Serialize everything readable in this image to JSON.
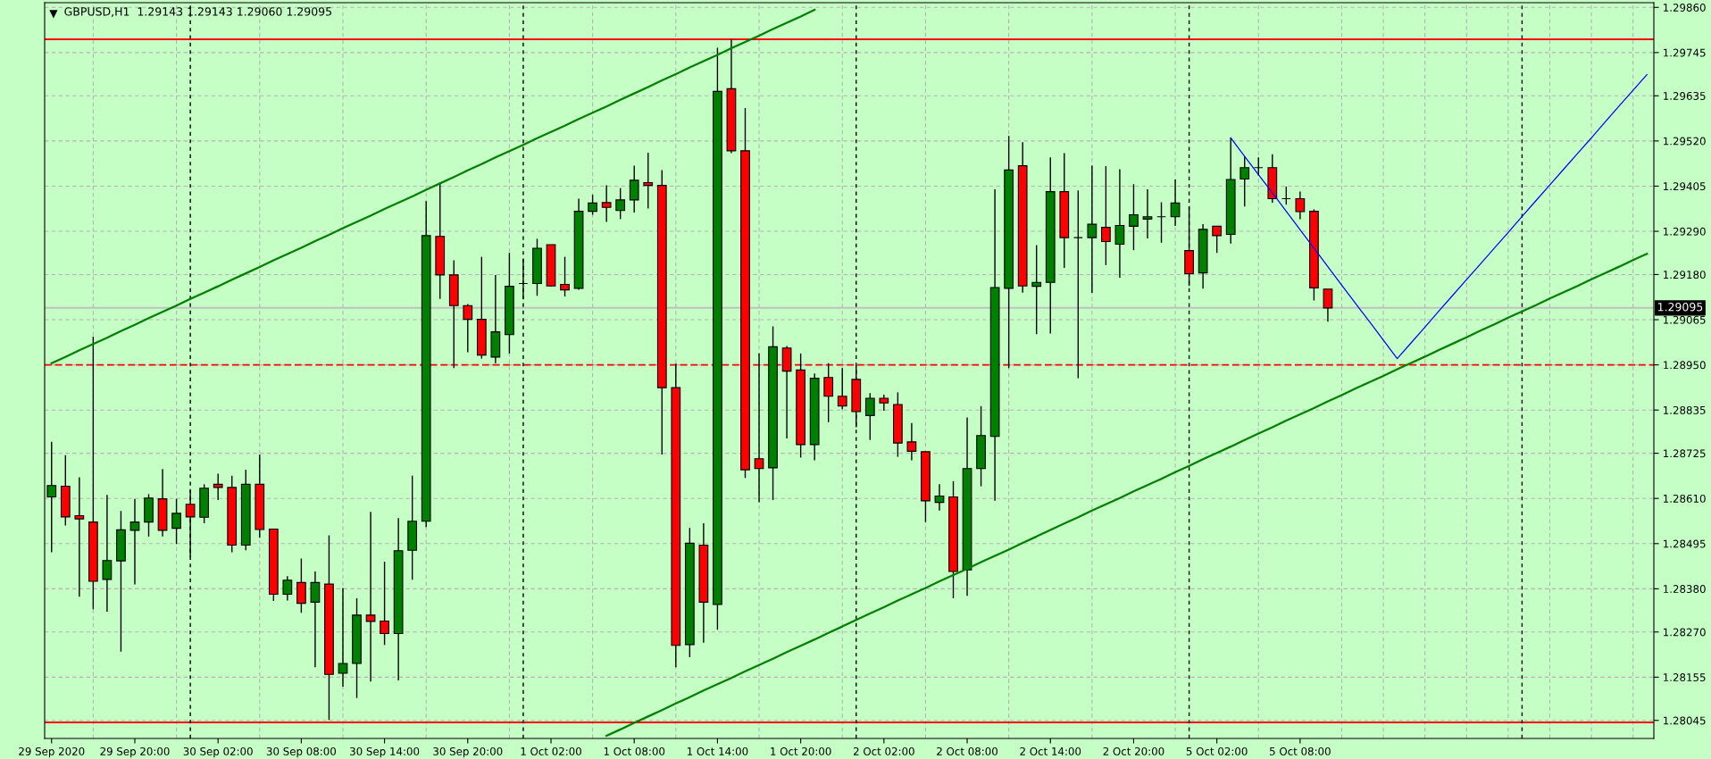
{
  "chart_data": {
    "type": "candlestick",
    "title": "GBPUSD,H1  1.29143 1.29143 1.29060 1.29095",
    "categories": [
      "29 Sep 2020",
      null,
      null,
      null,
      null,
      null,
      "29 Sep 20:00",
      null,
      null,
      null,
      null,
      null,
      "30 Sep 02:00",
      null,
      null,
      null,
      null,
      null,
      "30 Sep 08:00",
      null,
      null,
      null,
      null,
      null,
      "30 Sep 14:00",
      null,
      null,
      null,
      null,
      null,
      "30 Sep 20:00",
      null,
      null,
      null,
      null,
      null,
      "1 Oct 02:00",
      null,
      null,
      null,
      null,
      null,
      "1 Oct 08:00",
      null,
      null,
      null,
      null,
      null,
      "1 Oct 14:00",
      null,
      null,
      null,
      null,
      null,
      "1 Oct 20:00",
      null,
      null,
      null,
      null,
      null,
      "2 Oct 02:00",
      null,
      null,
      null,
      null,
      null,
      "2 Oct 08:00",
      null,
      null,
      null,
      null,
      null,
      "2 Oct 14:00",
      null,
      null,
      null,
      null,
      null,
      "2 Oct 20:00",
      null,
      null,
      null,
      null,
      null,
      "5 Oct 02:00",
      null,
      null,
      null,
      null,
      null,
      "5 Oct 08:00",
      null,
      null,
      null,
      null,
      null,
      null,
      null,
      null,
      null,
      null,
      null,
      null,
      null,
      null,
      null,
      null,
      null,
      null,
      null,
      null,
      null,
      null,
      null,
      null,
      null
    ],
    "ohlc": [
      [
        1.28614,
        1.28754,
        1.28473,
        1.28643
      ],
      [
        1.28641,
        1.2872,
        1.28541,
        1.28563
      ],
      [
        1.28566,
        1.28664,
        1.2836,
        1.28558
      ],
      [
        1.2855,
        1.29022,
        1.28328,
        1.28399
      ],
      [
        1.28404,
        1.28619,
        1.28322,
        1.28452
      ],
      [
        1.28451,
        1.28578,
        1.2822,
        1.2853
      ],
      [
        1.28529,
        1.28609,
        1.28391,
        1.2855
      ],
      [
        1.2855,
        1.28621,
        1.28513,
        1.28611
      ],
      [
        1.28609,
        1.28685,
        1.28513,
        1.28529
      ],
      [
        1.28534,
        1.28609,
        1.28494,
        1.28572
      ],
      [
        1.28595,
        1.28631,
        1.28461,
        1.28563
      ],
      [
        1.28562,
        1.28646,
        1.28547,
        1.28636
      ],
      [
        1.28646,
        1.28673,
        1.28606,
        1.28638
      ],
      [
        1.28638,
        1.28668,
        1.28473,
        1.28491
      ],
      [
        1.28491,
        1.28683,
        1.28478,
        1.28646
      ],
      [
        1.28646,
        1.28722,
        1.2851,
        1.28531
      ],
      [
        1.28532,
        1.28532,
        1.28349,
        1.28366
      ],
      [
        1.28366,
        1.28412,
        1.2835,
        1.28402
      ],
      [
        1.28396,
        1.28457,
        1.28319,
        1.28343
      ],
      [
        1.28346,
        1.28424,
        1.2818,
        1.28396
      ],
      [
        1.28392,
        1.28516,
        1.28046,
        1.28162
      ],
      [
        1.28165,
        1.28382,
        1.28131,
        1.2819
      ],
      [
        1.2819,
        1.28356,
        1.28102,
        1.28313
      ],
      [
        1.28313,
        1.28576,
        1.28144,
        1.28297
      ],
      [
        1.28298,
        1.28449,
        1.28237,
        1.28266
      ],
      [
        1.28266,
        1.2856,
        1.28147,
        1.28477
      ],
      [
        1.28478,
        1.28668,
        1.28403,
        1.28552
      ],
      [
        1.28552,
        1.29367,
        1.28537,
        1.29279
      ],
      [
        1.29277,
        1.29412,
        1.29118,
        1.29179
      ],
      [
        1.29179,
        1.29216,
        1.28942,
        1.29101
      ],
      [
        1.29101,
        1.29105,
        1.28982,
        1.29066
      ],
      [
        1.29066,
        1.29225,
        1.28966,
        1.28975
      ],
      [
        1.2897,
        1.29179,
        1.28954,
        1.29034
      ],
      [
        1.29027,
        1.29235,
        1.28979,
        1.2915
      ],
      [
        1.29157,
        1.29219,
        1.29118,
        1.29157
      ],
      [
        1.29157,
        1.29271,
        1.29126,
        1.29247
      ],
      [
        1.29256,
        1.29256,
        1.29149,
        1.29151
      ],
      [
        1.29155,
        1.29225,
        1.29124,
        1.29141
      ],
      [
        1.29145,
        1.29373,
        1.29141,
        1.29341
      ],
      [
        1.29341,
        1.29383,
        1.29332,
        1.29362
      ],
      [
        1.29363,
        1.29407,
        1.29314,
        1.29351
      ],
      [
        1.29343,
        1.294,
        1.29321,
        1.2937
      ],
      [
        1.2937,
        1.29457,
        1.29338,
        1.2942
      ],
      [
        1.29414,
        1.2949,
        1.29348,
        1.29407
      ],
      [
        1.29407,
        1.29446,
        1.28722,
        1.28892
      ],
      [
        1.28892,
        1.28953,
        1.2818,
        1.28236
      ],
      [
        1.28238,
        1.28535,
        1.28206,
        1.28496
      ],
      [
        1.28491,
        1.28547,
        1.28243,
        1.28346
      ],
      [
        1.2834,
        1.29757,
        1.28276,
        1.29646
      ],
      [
        1.29653,
        1.29779,
        1.29489,
        1.29495
      ],
      [
        1.29495,
        1.29604,
        1.28662,
        1.28683
      ],
      [
        1.28711,
        1.28979,
        1.286,
        1.28686
      ],
      [
        1.28688,
        1.29048,
        1.28606,
        1.28996
      ],
      [
        1.28993,
        1.28998,
        1.28763,
        1.28934
      ],
      [
        1.28937,
        1.28979,
        1.28714,
        1.28747
      ],
      [
        1.28747,
        1.28928,
        1.28707,
        1.28916
      ],
      [
        1.28918,
        1.28954,
        1.28804,
        1.2887
      ],
      [
        1.2887,
        1.28942,
        1.28837,
        1.28845
      ],
      [
        1.28913,
        1.28948,
        1.28791,
        1.28831
      ],
      [
        1.28821,
        1.28878,
        1.28759,
        1.28865
      ],
      [
        1.28865,
        1.28874,
        1.28833,
        1.28853
      ],
      [
        1.28849,
        1.2888,
        1.28716,
        1.28751
      ],
      [
        1.28754,
        1.28802,
        1.28707,
        1.2873
      ],
      [
        1.28729,
        1.28729,
        1.2855,
        1.28604
      ],
      [
        1.286,
        1.28646,
        1.28579,
        1.28616
      ],
      [
        1.28614,
        1.28654,
        1.28356,
        1.28424
      ],
      [
        1.28428,
        1.28816,
        1.28362,
        1.28686
      ],
      [
        1.28686,
        1.28845,
        1.28641,
        1.2877
      ],
      [
        1.28768,
        1.29397,
        1.28604,
        1.29147
      ],
      [
        1.29145,
        1.29533,
        1.28942,
        1.29446
      ],
      [
        1.29457,
        1.29517,
        1.29134,
        1.29151
      ],
      [
        1.2915,
        1.29255,
        1.29028,
        1.2916
      ],
      [
        1.2916,
        1.29478,
        1.2903,
        1.29391
      ],
      [
        1.29391,
        1.29489,
        1.29197,
        1.29274
      ],
      [
        1.29274,
        1.29394,
        1.28916,
        1.29274
      ],
      [
        1.29274,
        1.29457,
        1.29133,
        1.29308
      ],
      [
        1.293,
        1.29456,
        1.29204,
        1.29264
      ],
      [
        1.29257,
        1.29448,
        1.29172,
        1.29305
      ],
      [
        1.29303,
        1.2941,
        1.29242,
        1.29332
      ],
      [
        1.29321,
        1.29397,
        1.29272,
        1.29327
      ],
      [
        1.29327,
        1.29364,
        1.29261,
        1.29327
      ],
      [
        1.29327,
        1.29422,
        1.29304,
        1.29362
      ],
      [
        1.29241,
        1.29354,
        1.29151,
        1.29182
      ],
      [
        1.29184,
        1.29308,
        1.29144,
        1.29295
      ],
      [
        1.29303,
        1.29303,
        1.29235,
        1.29279
      ],
      [
        1.29282,
        1.29528,
        1.29259,
        1.29422
      ],
      [
        1.29423,
        1.2948,
        1.29353,
        1.29452
      ],
      [
        1.29452,
        1.29478,
        1.29432,
        1.29452
      ],
      [
        1.29452,
        1.29486,
        1.29363,
        1.29373
      ],
      [
        1.29373,
        1.29404,
        1.29358,
        1.29373
      ],
      [
        1.29373,
        1.29391,
        1.29321,
        1.2934
      ],
      [
        1.29341,
        1.29346,
        1.29114,
        1.29146
      ],
      [
        1.29143,
        1.29143,
        1.2906,
        1.29095
      ],
      null,
      null,
      null,
      null,
      null,
      null,
      null,
      null,
      null,
      null,
      null,
      null,
      null,
      null,
      null,
      null,
      null,
      null,
      null,
      null,
      null,
      null,
      null
    ],
    "colors": [
      "#008000",
      "#ff0000",
      "#ff0000",
      "#ff0000",
      "#008000",
      "#008000",
      "#008000",
      "#008000",
      "#ff0000",
      "#008000",
      "#ff0000",
      "#008000",
      "#ff0000",
      "#ff0000",
      "#008000",
      "#ff0000",
      "#ff0000",
      "#008000",
      "#ff0000",
      "#008000",
      "#ff0000",
      "#008000",
      "#008000",
      "#ff0000",
      "#ff0000",
      "#008000",
      "#008000",
      "#008000",
      "#ff0000",
      "#ff0000",
      "#ff0000",
      "#ff0000",
      "#008000",
      "#008000",
      "#000000",
      "#008000",
      "#ff0000",
      "#ff0000",
      "#008000",
      "#008000",
      "#ff0000",
      "#008000",
      "#008000",
      "#ff0000",
      "#ff0000",
      "#ff0000",
      "#008000",
      "#ff0000",
      "#008000",
      "#ff0000",
      "#ff0000",
      "#ff0000",
      "#008000",
      "#ff0000",
      "#ff0000",
      "#008000",
      "#ff0000",
      "#ff0000",
      "#ff0000",
      "#008000",
      "#ff0000",
      "#ff0000",
      "#ff0000",
      "#ff0000",
      "#008000",
      "#ff0000",
      "#008000",
      "#008000",
      "#008000",
      "#008000",
      "#ff0000",
      "#008000",
      "#008000",
      "#ff0000",
      "#000000",
      "#008000",
      "#ff0000",
      "#008000",
      "#008000",
      "#008000",
      "#000000",
      "#008000",
      "#ff0000",
      "#008000",
      "#ff0000",
      "#008000",
      "#008000",
      "#000000",
      "#ff0000",
      "#000000",
      "#ff0000",
      "#ff0000",
      "#ff0000",
      null,
      null,
      null,
      null,
      null,
      null,
      null,
      null,
      null,
      null,
      null,
      null,
      null,
      null,
      null,
      null,
      null,
      null,
      null,
      null,
      null,
      null,
      null
    ],
    "series": [
      {
        "type": "line",
        "color": "#008000",
        "values": [
          1.28954,
          1.2897,
          1.28987,
          1.29003,
          1.29019,
          1.29036,
          1.29052,
          1.29069,
          1.29085,
          1.29101,
          1.29118,
          1.29134,
          1.2915,
          1.29167,
          1.29183,
          1.29199,
          1.29216,
          1.29232,
          1.29248,
          1.29265,
          1.29281,
          1.29298,
          1.29314,
          1.2933,
          1.29347,
          1.29363,
          1.29379,
          1.29396,
          1.29412,
          1.29428,
          1.29445,
          1.29461,
          1.29478,
          1.29494,
          1.2951,
          1.29527,
          1.29543,
          1.29559,
          1.29576,
          1.29592,
          1.29608,
          1.29625,
          1.29641,
          1.29657,
          1.29674,
          1.2969,
          1.29707,
          1.29723,
          1.29739,
          1.29756,
          1.29772,
          1.29788,
          1.29805,
          1.29821,
          1.29837,
          1.29854,
          null,
          null,
          null,
          null,
          null,
          null,
          null,
          null,
          null,
          null,
          null,
          null,
          null,
          null,
          null,
          null,
          null,
          null,
          null,
          null,
          null,
          null,
          null,
          null,
          null,
          null,
          null,
          null,
          null,
          null,
          null,
          null,
          null,
          null,
          null,
          null,
          null,
          null,
          null,
          null,
          null,
          null,
          null,
          null,
          null,
          null,
          null,
          null,
          null,
          null,
          null,
          null,
          null,
          null,
          null,
          null,
          null,
          null,
          null,
          null
        ]
      },
      {
        "type": "line",
        "color": "#008000",
        "values": [
          null,
          null,
          null,
          null,
          null,
          null,
          null,
          null,
          null,
          null,
          null,
          null,
          null,
          null,
          null,
          null,
          null,
          null,
          null,
          null,
          null,
          null,
          null,
          null,
          null,
          null,
          null,
          null,
          null,
          null,
          null,
          null,
          null,
          null,
          null,
          null,
          null,
          null,
          null,
          null,
          1.28006,
          1.28022,
          1.28039,
          1.28055,
          1.28071,
          1.28088,
          1.28104,
          1.28121,
          1.28137,
          1.28153,
          1.2817,
          1.28186,
          1.28202,
          1.28219,
          1.28235,
          1.28251,
          1.28268,
          1.28284,
          1.28301,
          1.28317,
          1.28333,
          1.2835,
          1.28366,
          1.28382,
          1.28399,
          1.28415,
          1.28431,
          1.28448,
          1.28464,
          1.2848,
          1.28497,
          1.28513,
          1.2853,
          1.28546,
          1.28562,
          1.28579,
          1.28595,
          1.28611,
          1.28628,
          1.28644,
          1.2866,
          1.28677,
          1.28693,
          1.2871,
          1.28726,
          1.28742,
          1.28759,
          1.28775,
          1.28791,
          1.28808,
          1.28824,
          1.2884,
          1.28857,
          1.28873,
          1.2889,
          1.28906,
          1.28922,
          1.28939,
          1.28955,
          1.28971,
          1.28988,
          1.29004,
          1.2902,
          1.29037,
          1.29053,
          1.2907,
          1.29086,
          1.29102,
          1.29119,
          1.29135,
          1.29151,
          1.29168,
          1.29184,
          1.292,
          1.29217,
          1.29233
        ]
      },
      {
        "type": "line",
        "color": "#0000ff",
        "values": [
          null,
          null,
          null,
          null,
          null,
          null,
          null,
          null,
          null,
          null,
          null,
          null,
          null,
          null,
          null,
          null,
          null,
          null,
          null,
          null,
          null,
          null,
          null,
          null,
          null,
          null,
          null,
          null,
          null,
          null,
          null,
          null,
          null,
          null,
          null,
          null,
          null,
          null,
          null,
          null,
          null,
          null,
          null,
          null,
          null,
          null,
          null,
          null,
          null,
          null,
          null,
          null,
          null,
          null,
          null,
          null,
          null,
          null,
          null,
          null,
          null,
          null,
          null,
          null,
          null,
          null,
          null,
          null,
          null,
          null,
          null,
          null,
          null,
          null,
          null,
          null,
          null,
          null,
          null,
          null,
          null,
          null,
          null,
          null,
          null,
          1.29528,
          1.29481,
          1.29434,
          1.29388,
          1.29341,
          1.29294,
          1.29247,
          1.292,
          1.29153,
          1.29106,
          1.2906,
          1.29013,
          1.28966,
          1.29006,
          1.29046,
          1.29087,
          1.29127,
          1.29167,
          1.29207,
          1.29247,
          1.29287,
          1.29328,
          1.29368,
          1.29408,
          1.29448,
          1.29488,
          1.29528,
          1.29569,
          1.29609,
          1.29649,
          1.29689
        ]
      }
    ],
    "ref_lines": [
      {
        "axis": "y",
        "value": 1.29779,
        "color": "#ff0000",
        "line_style": "solid"
      },
      {
        "axis": "y",
        "value": 1.2895,
        "color": "#ff0000",
        "line_style": "dashed"
      },
      {
        "axis": "y",
        "value": 1.2804,
        "color": "#ff0000",
        "line_style": "solid"
      },
      {
        "axis": "y",
        "value": 1.29095,
        "color": "#c0c0c0",
        "line_style": "solid",
        "label": "1.29095"
      }
    ],
    "ylim": [
      1.27999,
      1.29872
    ],
    "yticks": [
      {
        "value": 1.2986,
        "label": "1.29860"
      },
      {
        "value": 1.29745,
        "label": "1.29745"
      },
      {
        "value": 1.29635,
        "label": "1.29635"
      },
      {
        "value": 1.2952,
        "label": "1.29520"
      },
      {
        "value": 1.29405,
        "label": "1.29405"
      },
      {
        "value": 1.2929,
        "label": "1.29290"
      },
      {
        "value": 1.2918,
        "label": "1.29180"
      },
      {
        "value": 1.29065,
        "label": "1.29065"
      },
      {
        "value": 1.2895,
        "label": "1.28950"
      },
      {
        "value": 1.28835,
        "label": "1.28835"
      },
      {
        "value": 1.28725,
        "label": "1.28725"
      },
      {
        "value": 1.2861,
        "label": "1.28610"
      },
      {
        "value": 1.28495,
        "label": "1.28495"
      },
      {
        "value": 1.2838,
        "label": "1.28380"
      },
      {
        "value": 1.2827,
        "label": "1.28270"
      },
      {
        "value": 1.28155,
        "label": "1.28155"
      },
      {
        "value": 1.28045,
        "label": "1.28045"
      }
    ],
    "grid": true
  }
}
